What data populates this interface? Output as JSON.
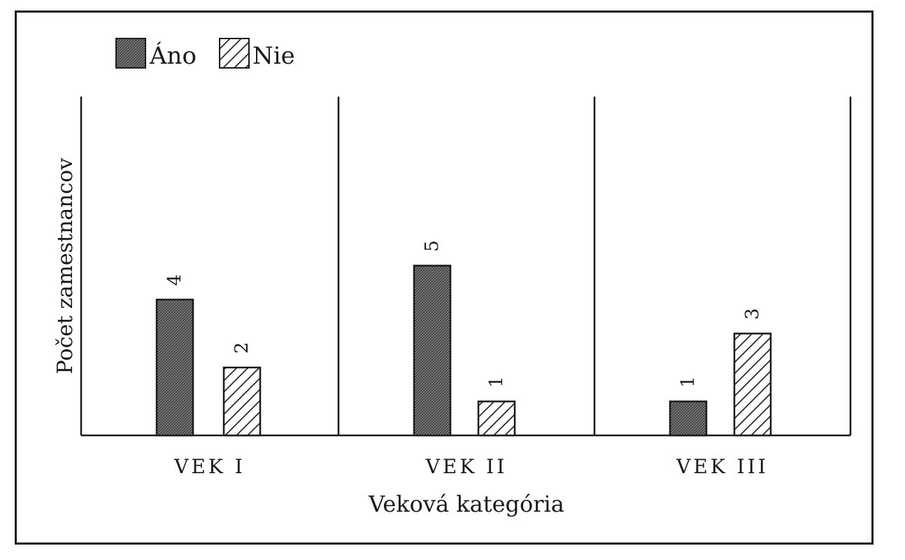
{
  "chart_data": {
    "type": "bar",
    "categories": [
      "VEK I",
      "VEK II",
      "VEK III"
    ],
    "series": [
      {
        "name": "Áno",
        "values": [
          4,
          5,
          1
        ],
        "pattern": "crosshatch"
      },
      {
        "name": "Nie",
        "values": [
          2,
          1,
          3
        ],
        "pattern": "diagonal"
      }
    ],
    "xlabel": "Veková kategória",
    "ylabel": "Počet zamestnancov",
    "ylim": [
      0,
      10
    ],
    "legend_position": "top-left",
    "data_labels": true,
    "colors": {
      "ink": "#1a1a1a",
      "fill_ano": "#777777",
      "fill_nie": "#ffffff"
    }
  }
}
